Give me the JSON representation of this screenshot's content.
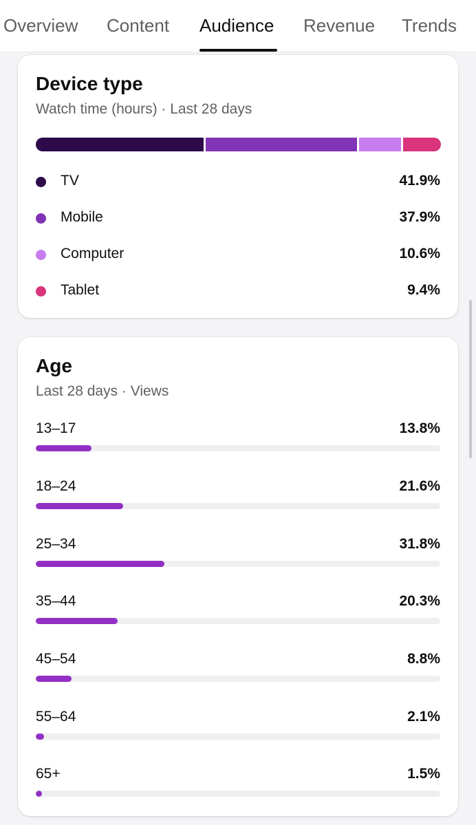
{
  "tabs": [
    {
      "label": "Overview"
    },
    {
      "label": "Content"
    },
    {
      "label": "Audience",
      "active": true
    },
    {
      "label": "Revenue"
    },
    {
      "label": "Trends"
    }
  ],
  "device_card": {
    "title": "Device type",
    "subtitle": "Watch time (hours) · Last 28 days",
    "items": [
      {
        "label": "TV",
        "value": "41.9%",
        "share": 41.9,
        "color": "#2d0a4a"
      },
      {
        "label": "Mobile",
        "value": "37.9%",
        "share": 37.9,
        "color": "#8134b6"
      },
      {
        "label": "Computer",
        "value": "10.6%",
        "share": 10.6,
        "color": "#c77df0"
      },
      {
        "label": "Tablet",
        "value": "9.4%",
        "share": 9.4,
        "color": "#d8357c"
      }
    ]
  },
  "age_card": {
    "title": "Age",
    "subtitle": "Last 28 days · Views",
    "bar_color": "#9330c4",
    "groups": [
      {
        "label": "13–17",
        "value": "13.8%",
        "share": 13.8
      },
      {
        "label": "18–24",
        "value": "21.6%",
        "share": 21.6
      },
      {
        "label": "25–34",
        "value": "31.8%",
        "share": 31.8
      },
      {
        "label": "35–44",
        "value": "20.3%",
        "share": 20.3
      },
      {
        "label": "45–54",
        "value": "8.8%",
        "share": 8.8
      },
      {
        "label": "55–64",
        "value": "2.1%",
        "share": 2.1
      },
      {
        "label": "65+",
        "value": "1.5%",
        "share": 1.5
      }
    ]
  }
}
